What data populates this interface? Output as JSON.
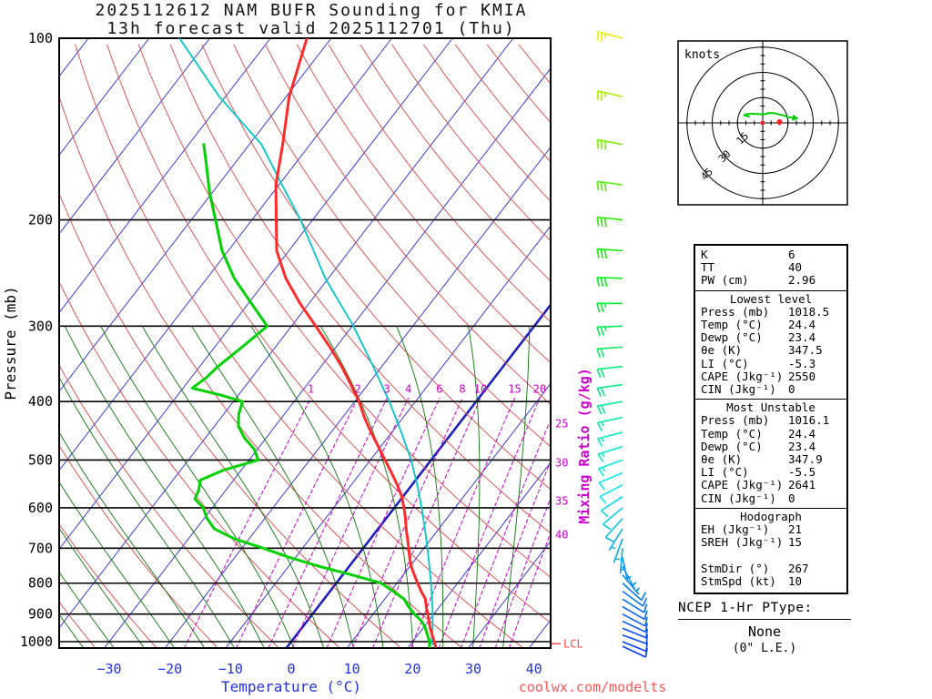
{
  "title": {
    "line1": "2025112612 NAM BUFR Sounding for KMIA",
    "line2": "13h forecast valid 2025112701 (Thu)"
  },
  "watermark": "coolwx.com/modelts",
  "axes": {
    "pressure_label": "Pressure (mb)",
    "temperature_label": "Temperature (°C)",
    "mixing_ratio_label": "Mixing Ratio (g/kg)",
    "pressure_ticks": [
      100,
      200,
      300,
      400,
      500,
      600,
      700,
      800,
      900,
      1000
    ],
    "temperature_ticks": [
      -30,
      -20,
      -10,
      0,
      10,
      20,
      30,
      40
    ]
  },
  "chart_data": {
    "type": "skewt-logp-sounding",
    "temperature_profile": {
      "pressure_mb": [
        1018.5,
        1000,
        975,
        950,
        925,
        900,
        875,
        850,
        825,
        800,
        775,
        750,
        725,
        700,
        675,
        650,
        625,
        600,
        575,
        550,
        525,
        500,
        475,
        450,
        425,
        400,
        375,
        350,
        325,
        300,
        275,
        250,
        225,
        200,
        175,
        150,
        125,
        100
      ],
      "temp_c": [
        24.4,
        23.6,
        22.4,
        21.2,
        20.1,
        19.0,
        17.8,
        16.7,
        15.0,
        13.4,
        11.8,
        10.2,
        8.8,
        7.5,
        6.1,
        4.6,
        3.2,
        1.6,
        -0.2,
        -2.4,
        -4.9,
        -7.6,
        -10.4,
        -13.4,
        -16.4,
        -19.3,
        -22.8,
        -26.6,
        -31.0,
        -36.0,
        -41.5,
        -47.0,
        -52.0,
        -56.0,
        -60.5,
        -64.5,
        -69.5,
        -74.0
      ]
    },
    "dewpoint_profile": {
      "pressure_mb": [
        1018.5,
        1000,
        975,
        950,
        925,
        900,
        875,
        850,
        825,
        800,
        775,
        750,
        725,
        700,
        675,
        650,
        625,
        600,
        580,
        560,
        540,
        520,
        500,
        480,
        460,
        440,
        420,
        400,
        390,
        380,
        365,
        350,
        325,
        300,
        275,
        250,
        225,
        200,
        180,
        160,
        150
      ],
      "temp_c": [
        23.4,
        22.8,
        21.6,
        20.4,
        18.9,
        16.8,
        14.9,
        13.2,
        10.4,
        7.4,
        1.5,
        -5.0,
        -11.0,
        -16.5,
        -22.5,
        -27.0,
        -29.5,
        -31.5,
        -34.0,
        -34.5,
        -35.5,
        -33.0,
        -28.5,
        -30.5,
        -33.5,
        -36.0,
        -37.5,
        -38.5,
        -43.0,
        -48.5,
        -47.5,
        -47.0,
        -45.5,
        -44.0,
        -49.5,
        -55.5,
        -61.0,
        -66.0,
        -70.5,
        -75.0,
        -77.5
      ]
    },
    "parcel_profile": {
      "pressure_mb": [
        1018.5,
        1004,
        975,
        950,
        925,
        900,
        850,
        800,
        750,
        700,
        650,
        600,
        550,
        500,
        450,
        400,
        350,
        300,
        250,
        200,
        175,
        150,
        125,
        100
      ],
      "temp_c": [
        24.4,
        23.2,
        22.4,
        21.6,
        20.7,
        19.8,
        17.8,
        15.6,
        13.2,
        10.6,
        7.7,
        4.5,
        0.9,
        -3.3,
        -8.4,
        -14.3,
        -21.4,
        -29.8,
        -40.5,
        -52.0,
        -59.5,
        -68.0,
        -81.0,
        -95.0
      ]
    },
    "wind_profile": {
      "pressure_mb": [
        1018,
        1000,
        975,
        950,
        925,
        900,
        875,
        850,
        825,
        800,
        775,
        750,
        725,
        700,
        675,
        650,
        625,
        600,
        575,
        550,
        525,
        500,
        475,
        450,
        425,
        400,
        375,
        350,
        325,
        300,
        275,
        250,
        225,
        200,
        175,
        150,
        125,
        100
      ],
      "dir_deg": [
        115,
        112,
        110,
        112,
        115,
        118,
        120,
        122,
        126,
        132,
        140,
        152,
        168,
        185,
        200,
        212,
        222,
        230,
        237,
        243,
        247,
        250,
        253,
        256,
        258,
        260,
        262,
        264,
        266,
        268,
        270,
        272,
        274,
        276,
        278,
        281,
        283,
        285
      ],
      "speed_kt": [
        9,
        10,
        11,
        12,
        12,
        11,
        10,
        10,
        9,
        8,
        7,
        6,
        5,
        5,
        6,
        7,
        8,
        9,
        10,
        11,
        12,
        13,
        14,
        15,
        16,
        18,
        19,
        20,
        22,
        24,
        26,
        28,
        30,
        32,
        30,
        28,
        26,
        24
      ]
    },
    "mixing_ratio_lines_gkg": [
      1,
      2,
      3,
      4,
      6,
      8,
      10,
      15,
      20,
      25,
      30,
      35,
      40
    ],
    "isotherm_step_c": 10,
    "lcl_pressure_mb": 1008,
    "lcl_label": "LCL",
    "hodograph": {
      "label": "knots",
      "rings_kt": [
        15,
        30,
        45
      ],
      "trace_uv_kt": [
        [
          -8.2,
          3.8
        ],
        [
          -11.1,
          4.5
        ],
        [
          -9.7,
          5.2
        ],
        [
          -8.5,
          5.3
        ],
        [
          -5.9,
          5.4
        ],
        [
          -2.8,
          5.3
        ],
        [
          0.4,
          5.0
        ],
        [
          3.7,
          5.9
        ],
        [
          6.9,
          5.8
        ],
        [
          9.8,
          5.0
        ],
        [
          12.2,
          4.5
        ],
        [
          14.6,
          3.6
        ],
        [
          17.7,
          3.1
        ]
      ],
      "storm_motion_dir_deg": 267,
      "storm_motion_speed_kt": 10
    }
  },
  "stats_panel": {
    "sections": [
      {
        "title": null,
        "rows": [
          [
            "K",
            "6"
          ],
          [
            "TT",
            "40"
          ],
          [
            "PW (cm)",
            "2.96"
          ]
        ]
      },
      {
        "title": "Lowest level",
        "rows": [
          [
            "Press (mb)",
            "1018.5"
          ],
          [
            "Temp (°C)",
            "24.4"
          ],
          [
            "Dewp (°C)",
            "23.4"
          ],
          [
            "θe (K)",
            "347.5"
          ],
          [
            "LI (°C)",
            "-5.3"
          ],
          [
            "CAPE (Jkg⁻¹)",
            "2550"
          ],
          [
            "CIN (Jkg⁻¹)",
            "0"
          ]
        ]
      },
      {
        "title": "Most Unstable",
        "rows": [
          [
            "Press (mb)",
            "1016.1"
          ],
          [
            "Temp (°C)",
            "24.4"
          ],
          [
            "Dewp (°C)",
            "23.4"
          ],
          [
            "θe (K)",
            "347.9"
          ],
          [
            "LI (°C)",
            "-5.5"
          ],
          [
            "CAPE (Jkg⁻¹)",
            "2641"
          ],
          [
            "CIN (Jkg⁻¹)",
            "0"
          ]
        ]
      },
      {
        "title": "Hodograph",
        "rows": [
          [
            "EH (Jkg⁻¹)",
            "21"
          ],
          [
            "SREH (Jkg⁻¹)",
            "15"
          ],
          [
            "",
            ""
          ],
          [
            "StmDir (°)",
            "267"
          ],
          [
            "StmSpd (kt)",
            "10"
          ]
        ]
      }
    ]
  },
  "ptype": {
    "header": "NCEP 1-Hr PType:",
    "value": "None",
    "detail": "(0\" L.E.)"
  },
  "colors": {
    "isotherm": "#3a3adf",
    "isotherm_zero": "#2020c0",
    "dry_adiabat": "#e04545",
    "moist_adiabat": "#0a770a",
    "mixing_ratio": "#cc00cc",
    "temperature": "#ff2b2b",
    "dewpoint": "#00d100",
    "parcel": "#00c8c8",
    "axis_blue": "#2233dd",
    "lcl": "#ff4444",
    "watermark": "#ff5555",
    "hodo_trace": "#00cc00",
    "storm_dot": "#ee2222"
  }
}
